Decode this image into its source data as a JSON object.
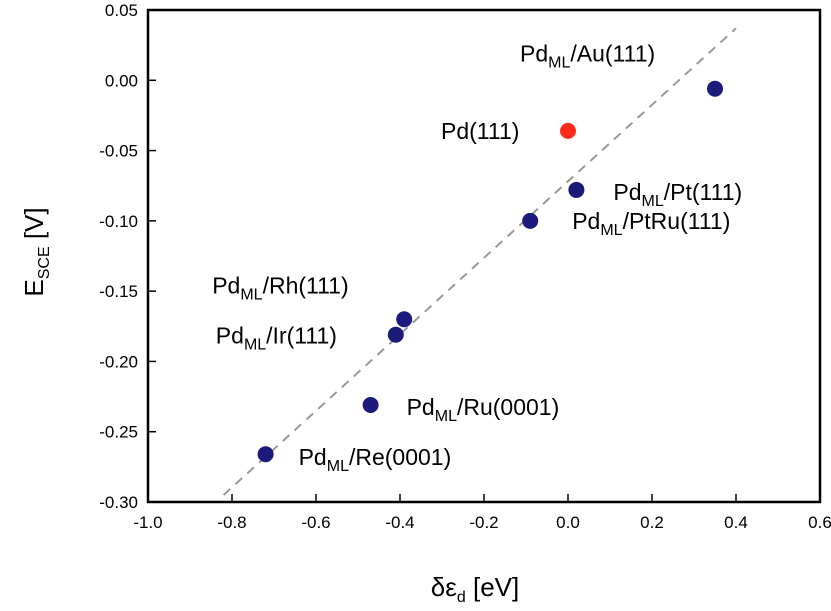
{
  "chart_data": {
    "type": "scatter",
    "xlabel_main": "δε",
    "xlabel_sub": "d",
    "xlabel_unit": " [eV]",
    "ylabel_main": "E",
    "ylabel_sub": "SCE",
    "ylabel_unit": " [V]",
    "xlim": [
      -1.0,
      0.6
    ],
    "ylim": [
      -0.3,
      0.05
    ],
    "xticks": [
      -1.0,
      -0.8,
      -0.6,
      -0.4,
      -0.2,
      0.0,
      0.2,
      0.4,
      0.6
    ],
    "xtick_labels": [
      "-1.0",
      "-0.8",
      "-0.6",
      "-0.4",
      "-0.2",
      "0.0",
      "0.2",
      "0.4",
      "0.6"
    ],
    "yticks": [
      0.05,
      0.0,
      -0.05,
      -0.1,
      -0.15,
      -0.2,
      -0.25,
      -0.3
    ],
    "ytick_labels": [
      "0.05",
      "0.00",
      "-0.05",
      "-0.10",
      "-0.15",
      "-0.20",
      "-0.25",
      "-0.30"
    ],
    "grid": false,
    "legend": "none",
    "colors": {
      "points": "#1c1a7a",
      "highlight": "#ff2a1a",
      "fit_line": "#999999"
    },
    "fit_line": {
      "x": [
        -0.82,
        0.4
      ],
      "y": [
        -0.295,
        0.037
      ]
    },
    "points": [
      {
        "x": 0.35,
        "y": -0.006,
        "label_main": "Pd",
        "label_sub": "ML",
        "label_tail": "/Au(111)",
        "highlight": false
      },
      {
        "x": 0.0,
        "y": -0.036,
        "label_main": "Pd(111)",
        "label_sub": "",
        "label_tail": "",
        "highlight": true
      },
      {
        "x": 0.02,
        "y": -0.078,
        "label_main": "Pd",
        "label_sub": "ML",
        "label_tail": "/Pt(111)",
        "highlight": false
      },
      {
        "x": -0.09,
        "y": -0.1,
        "label_main": "Pd",
        "label_sub": "ML",
        "label_tail": "/PtRu(111)",
        "highlight": false
      },
      {
        "x": -0.39,
        "y": -0.17,
        "label_main": "Pd",
        "label_sub": "ML",
        "label_tail": "/Rh(111)",
        "highlight": false
      },
      {
        "x": -0.41,
        "y": -0.181,
        "label_main": "Pd",
        "label_sub": "ML",
        "label_tail": "/Ir(111)",
        "highlight": false
      },
      {
        "x": -0.47,
        "y": -0.231,
        "label_main": "Pd",
        "label_sub": "ML",
        "label_tail": "/Ru(0001)",
        "highlight": false
      },
      {
        "x": -0.72,
        "y": -0.266,
        "label_main": "Pd",
        "label_sub": "ML",
        "label_tail": "/Re(0001)",
        "highlight": false
      }
    ]
  }
}
